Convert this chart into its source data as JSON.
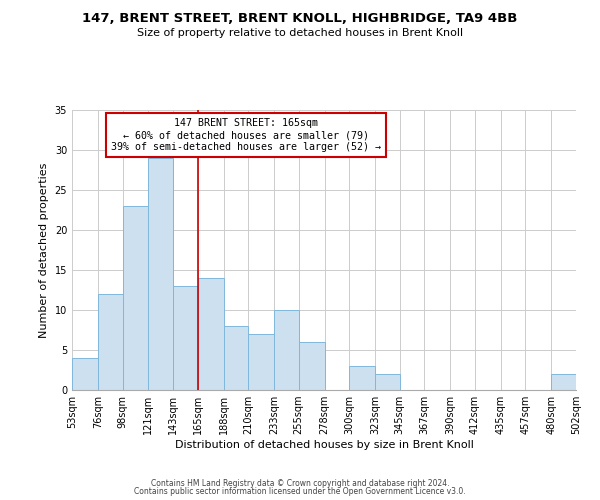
{
  "title": "147, BRENT STREET, BRENT KNOLL, HIGHBRIDGE, TA9 4BB",
  "subtitle": "Size of property relative to detached houses in Brent Knoll",
  "xlabel": "Distribution of detached houses by size in Brent Knoll",
  "ylabel": "Number of detached properties",
  "bar_edges": [
    53,
    76,
    98,
    121,
    143,
    165,
    188,
    210,
    233,
    255,
    278,
    300,
    323,
    345,
    367,
    390,
    412,
    435,
    457,
    480,
    502
  ],
  "bar_heights": [
    4,
    12,
    23,
    29,
    13,
    14,
    8,
    7,
    10,
    6,
    0,
    3,
    2,
    0,
    0,
    0,
    0,
    0,
    0,
    2
  ],
  "bar_color": "#cce0f0",
  "bar_edge_color": "#7fb8dc",
  "vline_x": 165,
  "vline_color": "#cc0000",
  "annotation_title": "147 BRENT STREET: 165sqm",
  "annotation_line1": "← 60% of detached houses are smaller (79)",
  "annotation_line2": "39% of semi-detached houses are larger (52) →",
  "annotation_box_color": "#ffffff",
  "annotation_box_edge_color": "#cc0000",
  "ylim": [
    0,
    35
  ],
  "xlim": [
    53,
    502
  ],
  "tick_labels": [
    "53sqm",
    "76sqm",
    "98sqm",
    "121sqm",
    "143sqm",
    "165sqm",
    "188sqm",
    "210sqm",
    "233sqm",
    "255sqm",
    "278sqm",
    "300sqm",
    "323sqm",
    "345sqm",
    "367sqm",
    "390sqm",
    "412sqm",
    "435sqm",
    "457sqm",
    "480sqm",
    "502sqm"
  ],
  "footer1": "Contains HM Land Registry data © Crown copyright and database right 2024.",
  "footer2": "Contains public sector information licensed under the Open Government Licence v3.0.",
  "bg_color": "#ffffff",
  "grid_color": "#cccccc"
}
